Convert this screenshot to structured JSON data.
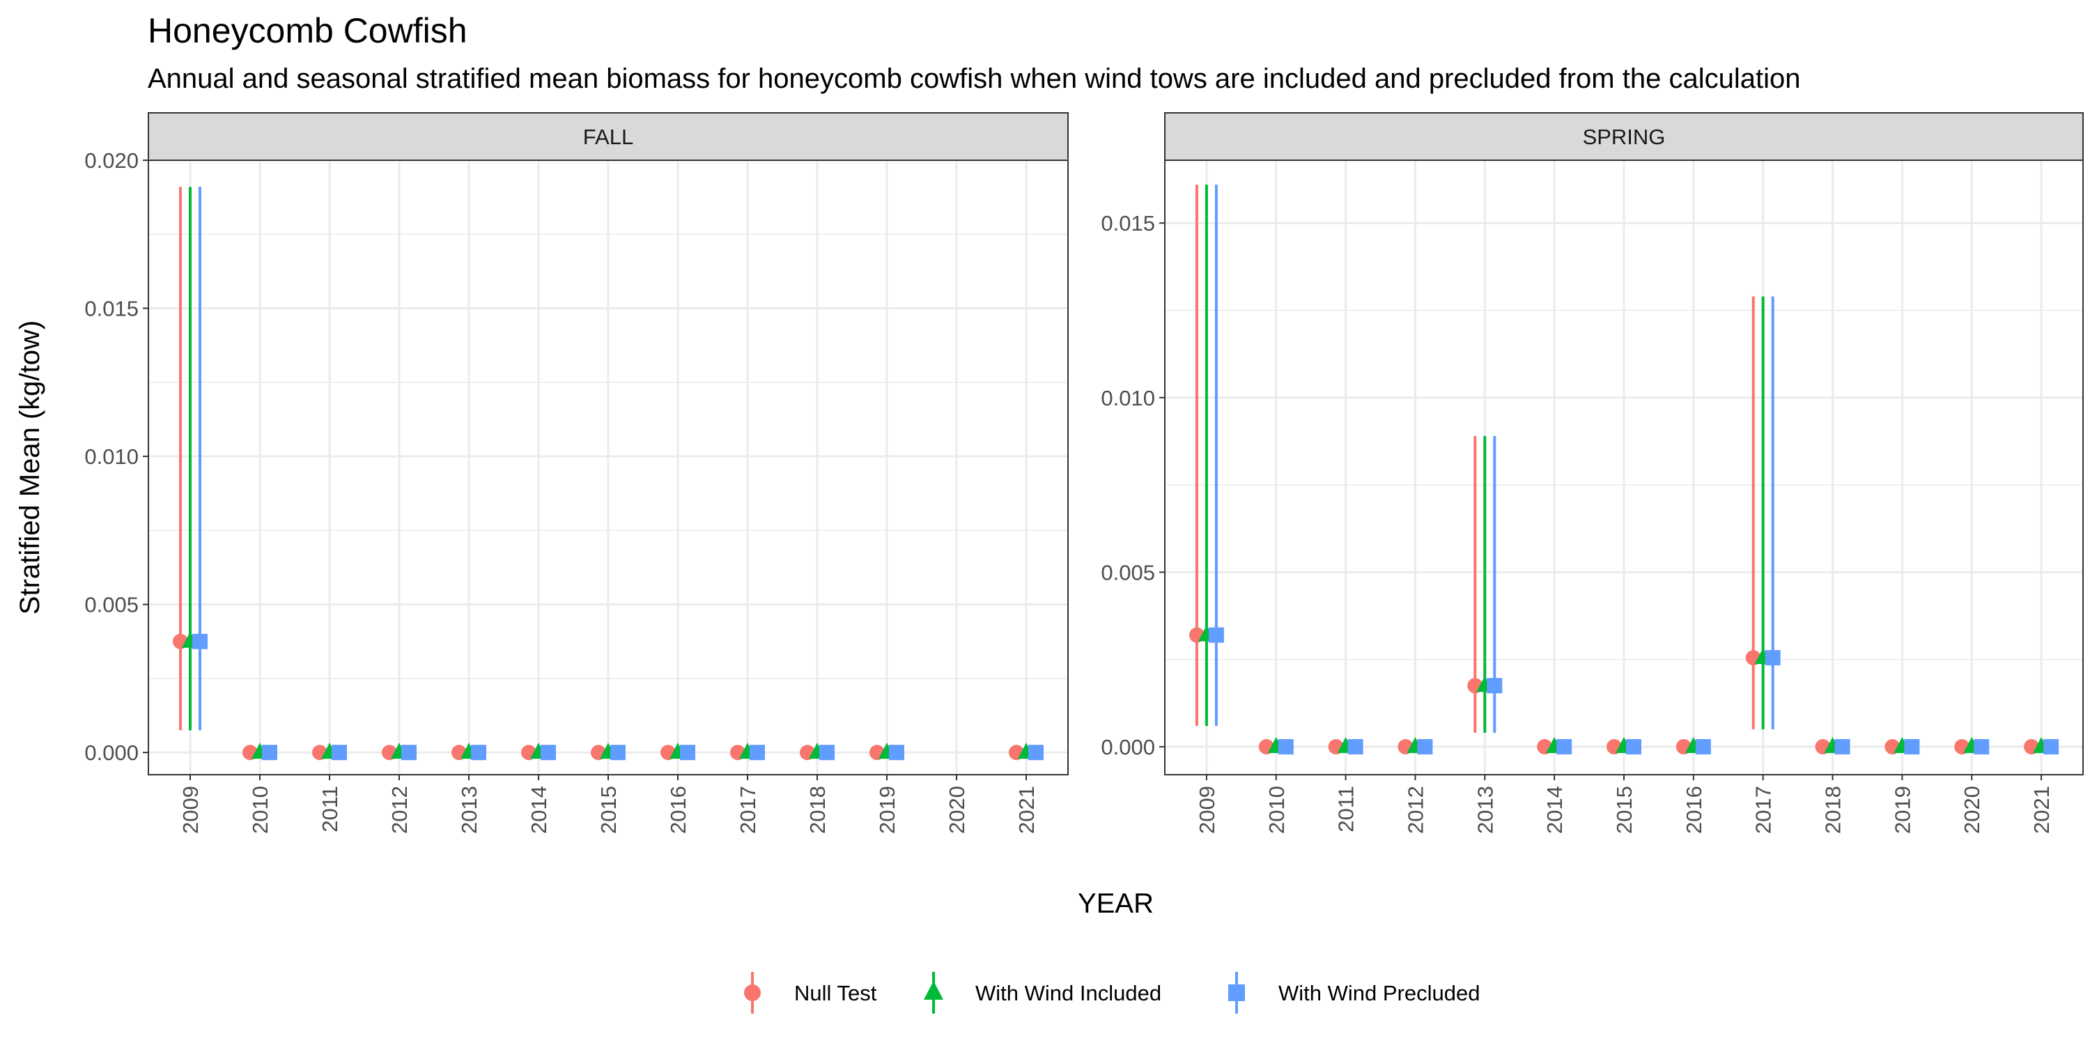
{
  "title": "Honeycomb Cowfish",
  "subtitle": "Annual and seasonal stratified mean biomass for honeycomb cowfish when wind tows are included and precluded from the calculation",
  "colors": {
    "null_test": "#F8766D",
    "with_wind_included": "#00BA38",
    "with_wind_precluded": "#619CFF",
    "strip_bg": "#D9D9D9",
    "grid": "#EBEBEB"
  },
  "chart_data": {
    "type": "errorbar-point",
    "xlabel": "YEAR",
    "ylabel": "Stratified Mean (kg/tow)",
    "legend": {
      "position": "bottom",
      "entries": [
        "Null Test",
        "With Wind Included",
        "With Wind Precluded"
      ],
      "shapes": [
        "circle",
        "triangle",
        "square"
      ]
    },
    "years": [
      "2009",
      "2010",
      "2011",
      "2012",
      "2013",
      "2014",
      "2015",
      "2016",
      "2017",
      "2018",
      "2019",
      "2020",
      "2021"
    ],
    "panels": [
      {
        "name": "FALL",
        "ylim": [
          -0.00075,
          0.02
        ],
        "yticks": [
          "0.000",
          "0.005",
          "0.010",
          "0.015",
          "0.020"
        ],
        "points": [
          {
            "year": "2009",
            "mean": 0.00375,
            "lo": 0.00075,
            "hi": 0.0191
          },
          {
            "year": "2010",
            "mean": 0.0,
            "lo": 0.0,
            "hi": 0.0
          },
          {
            "year": "2011",
            "mean": 0.0,
            "lo": 0.0,
            "hi": 0.0
          },
          {
            "year": "2012",
            "mean": 0.0,
            "lo": 0.0,
            "hi": 0.0
          },
          {
            "year": "2013",
            "mean": 0.0,
            "lo": 0.0,
            "hi": 0.0
          },
          {
            "year": "2014",
            "mean": 0.0,
            "lo": 0.0,
            "hi": 0.0
          },
          {
            "year": "2015",
            "mean": 0.0,
            "lo": 0.0,
            "hi": 0.0
          },
          {
            "year": "2016",
            "mean": 0.0,
            "lo": 0.0,
            "hi": 0.0
          },
          {
            "year": "2017",
            "mean": 0.0,
            "lo": 0.0,
            "hi": 0.0
          },
          {
            "year": "2018",
            "mean": 0.0,
            "lo": 0.0,
            "hi": 0.0
          },
          {
            "year": "2019",
            "mean": 0.0,
            "lo": 0.0,
            "hi": 0.0
          },
          {
            "year": "2021",
            "mean": 0.0,
            "lo": 0.0,
            "hi": 0.0
          }
        ]
      },
      {
        "name": "SPRING",
        "ylim": [
          -0.0008,
          0.0168
        ],
        "yticks": [
          "0.000",
          "0.005",
          "0.010",
          "0.015"
        ],
        "points": [
          {
            "year": "2009",
            "mean": 0.0032,
            "lo": 0.0006,
            "hi": 0.0161
          },
          {
            "year": "2010",
            "mean": 0.0,
            "lo": 0.0,
            "hi": 0.0
          },
          {
            "year": "2011",
            "mean": 0.0,
            "lo": 0.0,
            "hi": 0.0
          },
          {
            "year": "2012",
            "mean": 0.0,
            "lo": 0.0,
            "hi": 0.0
          },
          {
            "year": "2013",
            "mean": 0.00175,
            "lo": 0.0004,
            "hi": 0.0089
          },
          {
            "year": "2014",
            "mean": 0.0,
            "lo": 0.0,
            "hi": 0.0
          },
          {
            "year": "2015",
            "mean": 0.0,
            "lo": 0.0,
            "hi": 0.0
          },
          {
            "year": "2016",
            "mean": 0.0,
            "lo": 0.0,
            "hi": 0.0
          },
          {
            "year": "2017",
            "mean": 0.00255,
            "lo": 0.0005,
            "hi": 0.0129
          },
          {
            "year": "2018",
            "mean": 0.0,
            "lo": 0.0,
            "hi": 0.0
          },
          {
            "year": "2019",
            "mean": 0.0,
            "lo": 0.0,
            "hi": 0.0
          },
          {
            "year": "2020",
            "mean": 0.0,
            "lo": 0.0,
            "hi": 0.0
          },
          {
            "year": "2021",
            "mean": 0.0,
            "lo": 0.0,
            "hi": 0.0
          }
        ]
      }
    ]
  }
}
